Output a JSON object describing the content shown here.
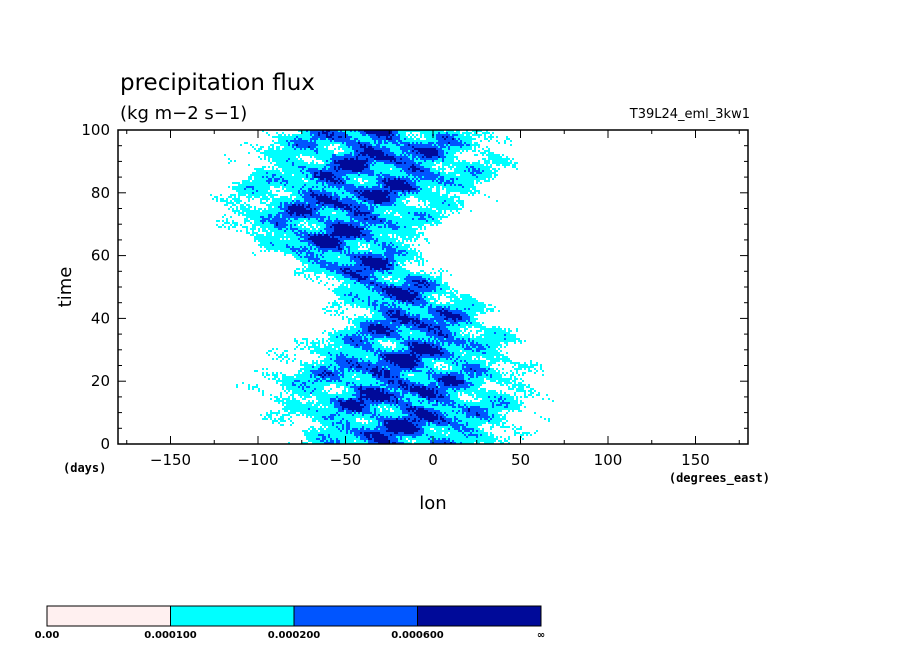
{
  "chart_data": {
    "type": "heatmap",
    "title": "precipitation flux",
    "units": "(kg m−2 s−1)",
    "experiment": "T39L24_eml_3kw1",
    "xlabel": "lon",
    "ylabel": "time",
    "x_units": "(degrees_east)",
    "y_units": "(days)",
    "xlim": [
      -180,
      180
    ],
    "ylim": [
      0,
      100
    ],
    "x_ticks": [
      -150,
      -100,
      -50,
      0,
      50,
      100,
      150
    ],
    "y_ticks": [
      0,
      20,
      40,
      60,
      80,
      100
    ],
    "colorbar": {
      "levels": [
        "0.00",
        "0.000100",
        "0.000200",
        "0.000600",
        "∞"
      ],
      "colors": [
        "#fff0f0",
        "#00ffff",
        "#0055ff",
        "#000a99"
      ]
    }
  }
}
